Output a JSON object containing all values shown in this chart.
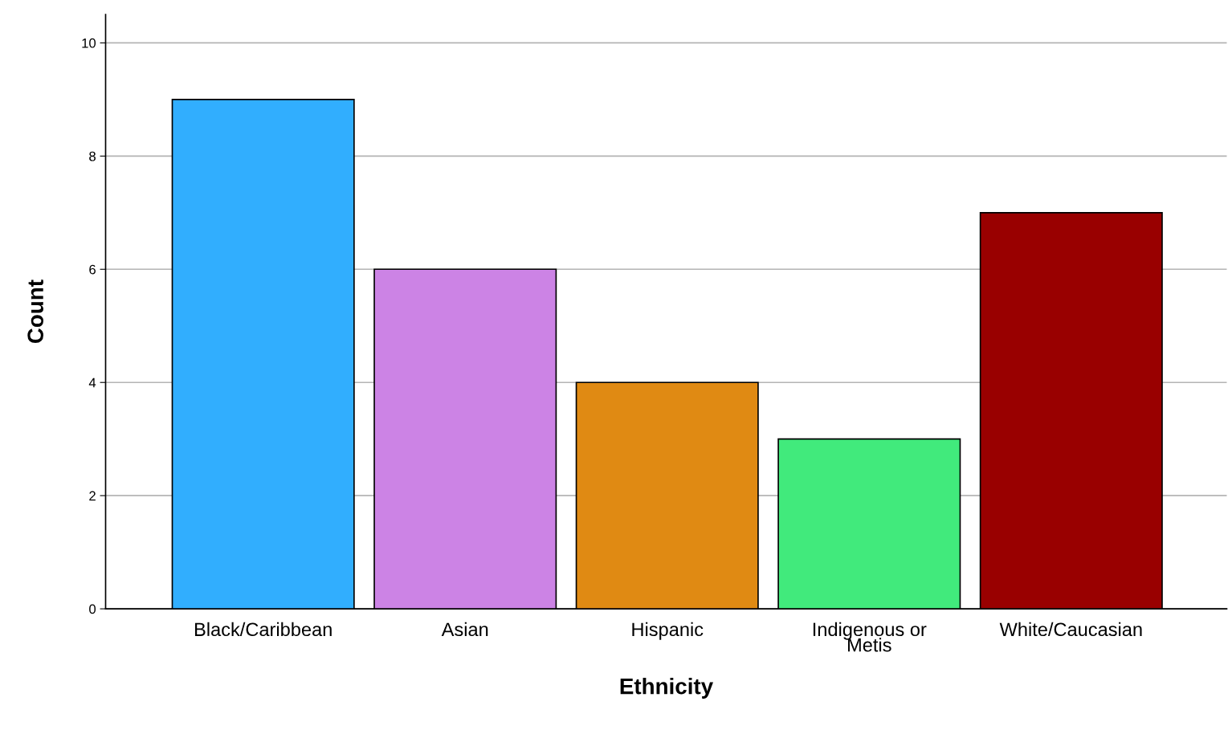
{
  "chart_data": {
    "type": "bar",
    "xlabel": "Ethnicity",
    "ylabel": "Count",
    "categories": [
      "Black/Caribbean",
      "Asian",
      "Hispanic",
      "Indigenous or\nMetis",
      "White/Caucasian"
    ],
    "values": [
      9,
      6,
      4,
      3,
      7
    ],
    "colors": [
      "#31aefe",
      "#cc83e5",
      "#e08a13",
      "#41ea7c",
      "#990000"
    ],
    "ylim": [
      0,
      10.5
    ],
    "yticks": [
      0,
      2,
      4,
      6,
      8,
      10
    ],
    "grid": "y",
    "legend": false
  }
}
